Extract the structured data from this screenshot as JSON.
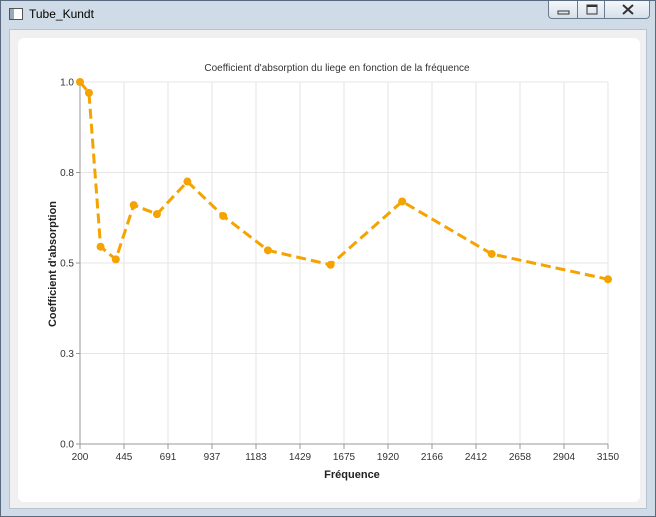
{
  "window": {
    "title": "Tube_Kundt"
  },
  "icons": {
    "app": "window-app-icon",
    "minimize": "minimize-icon",
    "maximize": "maximize-icon",
    "close": "close-icon"
  },
  "chart_data": {
    "type": "line",
    "title": "Coefficient d'absorption du liege en fonction de la fréquence",
    "xlabel": "Fréquence",
    "ylabel": "Coefficient d'absorption",
    "xlim": [
      200,
      3150
    ],
    "ylim": [
      0.0,
      1.0
    ],
    "x_tick_labels": [
      "200",
      "445",
      "691",
      "937",
      "1183",
      "1429",
      "1675",
      "1920",
      "2166",
      "2412",
      "2658",
      "2904",
      "3150"
    ],
    "y_tick_labels": [
      "0.0",
      "0.3",
      "0.5",
      "0.8",
      "1.0"
    ],
    "grid": true,
    "line_color": "#F5A300",
    "line_style": "dashed",
    "markers": true,
    "series": [
      {
        "x": [
          200,
          250,
          315,
          400,
          500,
          630,
          800,
          1000,
          1250,
          1600,
          2000,
          2500,
          3150
        ],
        "y": [
          1.0,
          0.97,
          0.545,
          0.51,
          0.66,
          0.635,
          0.725,
          0.63,
          0.535,
          0.495,
          0.67,
          0.525,
          0.455
        ]
      }
    ]
  }
}
